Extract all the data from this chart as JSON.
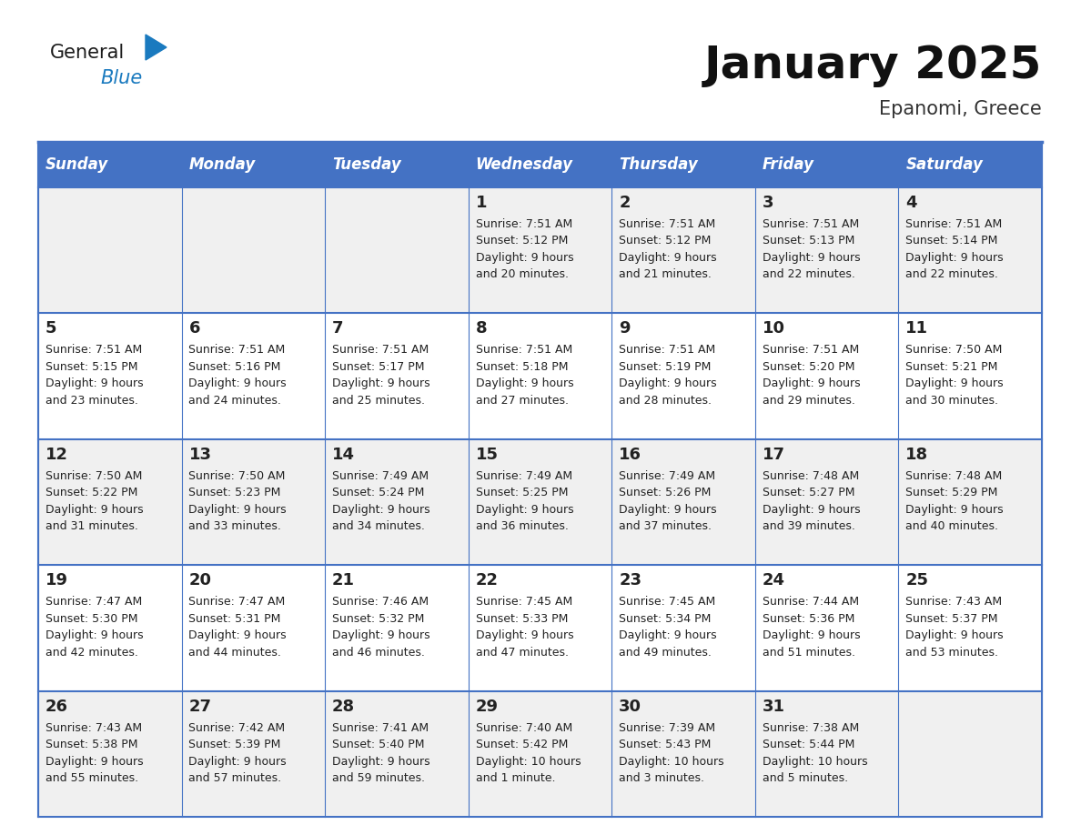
{
  "title": "January 2025",
  "subtitle": "Epanomi, Greece",
  "header_color": "#4472C4",
  "header_text_color": "#FFFFFF",
  "row_bg_grey": "#F0F0F0",
  "row_bg_white": "#FFFFFF",
  "border_color": "#4472C4",
  "text_color": "#222222",
  "days_of_week": [
    "Sunday",
    "Monday",
    "Tuesday",
    "Wednesday",
    "Thursday",
    "Friday",
    "Saturday"
  ],
  "weeks": [
    [
      {
        "day": null,
        "info": null
      },
      {
        "day": null,
        "info": null
      },
      {
        "day": null,
        "info": null
      },
      {
        "day": 1,
        "info": "Sunrise: 7:51 AM\nSunset: 5:12 PM\nDaylight: 9 hours\nand 20 minutes."
      },
      {
        "day": 2,
        "info": "Sunrise: 7:51 AM\nSunset: 5:12 PM\nDaylight: 9 hours\nand 21 minutes."
      },
      {
        "day": 3,
        "info": "Sunrise: 7:51 AM\nSunset: 5:13 PM\nDaylight: 9 hours\nand 22 minutes."
      },
      {
        "day": 4,
        "info": "Sunrise: 7:51 AM\nSunset: 5:14 PM\nDaylight: 9 hours\nand 22 minutes."
      }
    ],
    [
      {
        "day": 5,
        "info": "Sunrise: 7:51 AM\nSunset: 5:15 PM\nDaylight: 9 hours\nand 23 minutes."
      },
      {
        "day": 6,
        "info": "Sunrise: 7:51 AM\nSunset: 5:16 PM\nDaylight: 9 hours\nand 24 minutes."
      },
      {
        "day": 7,
        "info": "Sunrise: 7:51 AM\nSunset: 5:17 PM\nDaylight: 9 hours\nand 25 minutes."
      },
      {
        "day": 8,
        "info": "Sunrise: 7:51 AM\nSunset: 5:18 PM\nDaylight: 9 hours\nand 27 minutes."
      },
      {
        "day": 9,
        "info": "Sunrise: 7:51 AM\nSunset: 5:19 PM\nDaylight: 9 hours\nand 28 minutes."
      },
      {
        "day": 10,
        "info": "Sunrise: 7:51 AM\nSunset: 5:20 PM\nDaylight: 9 hours\nand 29 minutes."
      },
      {
        "day": 11,
        "info": "Sunrise: 7:50 AM\nSunset: 5:21 PM\nDaylight: 9 hours\nand 30 minutes."
      }
    ],
    [
      {
        "day": 12,
        "info": "Sunrise: 7:50 AM\nSunset: 5:22 PM\nDaylight: 9 hours\nand 31 minutes."
      },
      {
        "day": 13,
        "info": "Sunrise: 7:50 AM\nSunset: 5:23 PM\nDaylight: 9 hours\nand 33 minutes."
      },
      {
        "day": 14,
        "info": "Sunrise: 7:49 AM\nSunset: 5:24 PM\nDaylight: 9 hours\nand 34 minutes."
      },
      {
        "day": 15,
        "info": "Sunrise: 7:49 AM\nSunset: 5:25 PM\nDaylight: 9 hours\nand 36 minutes."
      },
      {
        "day": 16,
        "info": "Sunrise: 7:49 AM\nSunset: 5:26 PM\nDaylight: 9 hours\nand 37 minutes."
      },
      {
        "day": 17,
        "info": "Sunrise: 7:48 AM\nSunset: 5:27 PM\nDaylight: 9 hours\nand 39 minutes."
      },
      {
        "day": 18,
        "info": "Sunrise: 7:48 AM\nSunset: 5:29 PM\nDaylight: 9 hours\nand 40 minutes."
      }
    ],
    [
      {
        "day": 19,
        "info": "Sunrise: 7:47 AM\nSunset: 5:30 PM\nDaylight: 9 hours\nand 42 minutes."
      },
      {
        "day": 20,
        "info": "Sunrise: 7:47 AM\nSunset: 5:31 PM\nDaylight: 9 hours\nand 44 minutes."
      },
      {
        "day": 21,
        "info": "Sunrise: 7:46 AM\nSunset: 5:32 PM\nDaylight: 9 hours\nand 46 minutes."
      },
      {
        "day": 22,
        "info": "Sunrise: 7:45 AM\nSunset: 5:33 PM\nDaylight: 9 hours\nand 47 minutes."
      },
      {
        "day": 23,
        "info": "Sunrise: 7:45 AM\nSunset: 5:34 PM\nDaylight: 9 hours\nand 49 minutes."
      },
      {
        "day": 24,
        "info": "Sunrise: 7:44 AM\nSunset: 5:36 PM\nDaylight: 9 hours\nand 51 minutes."
      },
      {
        "day": 25,
        "info": "Sunrise: 7:43 AM\nSunset: 5:37 PM\nDaylight: 9 hours\nand 53 minutes."
      }
    ],
    [
      {
        "day": 26,
        "info": "Sunrise: 7:43 AM\nSunset: 5:38 PM\nDaylight: 9 hours\nand 55 minutes."
      },
      {
        "day": 27,
        "info": "Sunrise: 7:42 AM\nSunset: 5:39 PM\nDaylight: 9 hours\nand 57 minutes."
      },
      {
        "day": 28,
        "info": "Sunrise: 7:41 AM\nSunset: 5:40 PM\nDaylight: 9 hours\nand 59 minutes."
      },
      {
        "day": 29,
        "info": "Sunrise: 7:40 AM\nSunset: 5:42 PM\nDaylight: 10 hours\nand 1 minute."
      },
      {
        "day": 30,
        "info": "Sunrise: 7:39 AM\nSunset: 5:43 PM\nDaylight: 10 hours\nand 3 minutes."
      },
      {
        "day": 31,
        "info": "Sunrise: 7:38 AM\nSunset: 5:44 PM\nDaylight: 10 hours\nand 5 minutes."
      },
      {
        "day": null,
        "info": null
      }
    ]
  ],
  "logo_text_general": "General",
  "logo_text_blue": "Blue",
  "logo_color_general": "#1a1a1a",
  "logo_color_blue": "#1a7abf",
  "logo_triangle_color": "#1a7abf",
  "title_fontsize": 36,
  "subtitle_fontsize": 15,
  "header_fontsize": 12,
  "day_number_fontsize": 13,
  "info_fontsize": 9
}
